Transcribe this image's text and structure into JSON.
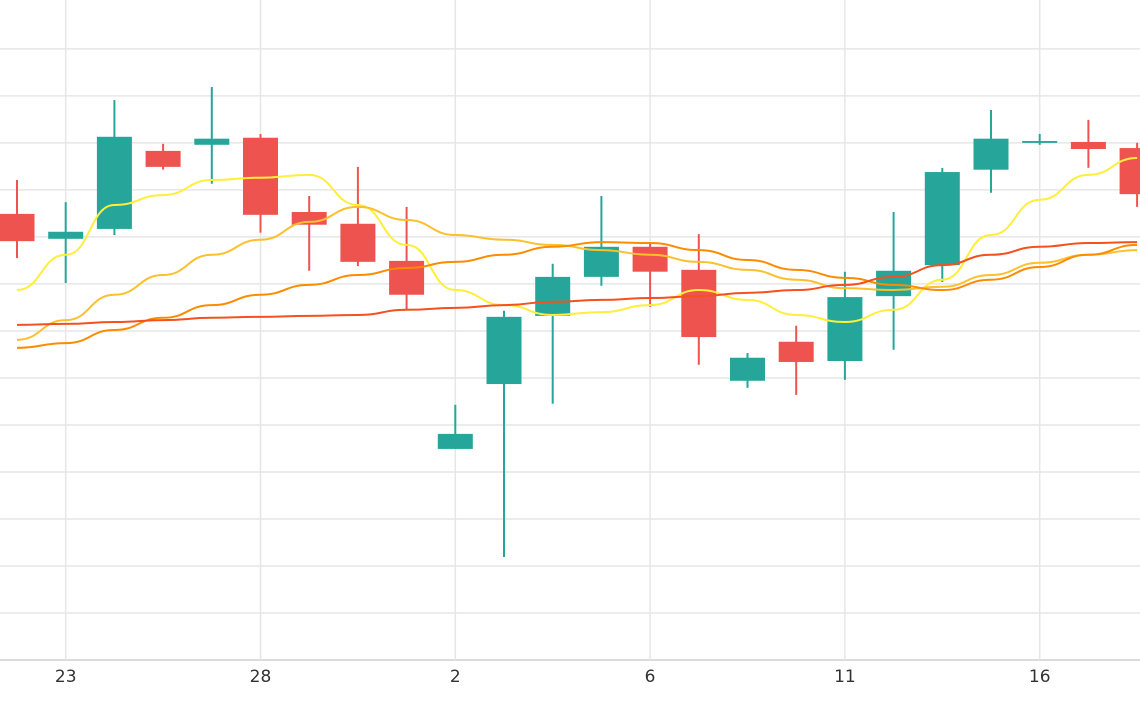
{
  "chart_data": {
    "type": "candlestick",
    "categories": [
      null,
      "23",
      null,
      null,
      null,
      "28",
      null,
      null,
      null,
      "2",
      null,
      null,
      null,
      "6",
      null,
      null,
      null,
      "11",
      null,
      null,
      null,
      "16",
      null,
      null
    ],
    "open": [
      9.49,
      8.96,
      9.17,
      10.83,
      10.96,
      11.11,
      9.53,
      9.28,
      8.49,
      4.49,
      5.87,
      7.32,
      8.15,
      8.79,
      8.3,
      5.94,
      6.77,
      6.36,
      7.74,
      8.4,
      10.43,
      11.0,
      11.02,
      10.89
    ],
    "high": [
      10.21,
      9.74,
      11.91,
      10.98,
      12.19,
      11.19,
      9.87,
      10.49,
      9.64,
      5.43,
      7.43,
      8.43,
      9.87,
      8.89,
      9.06,
      6.53,
      7.11,
      8.26,
      9.53,
      10.47,
      11.7,
      11.19,
      11.49,
      11.0
    ],
    "low": [
      8.55,
      8.02,
      9.04,
      10.43,
      10.13,
      9.09,
      8.28,
      8.38,
      7.45,
      4.49,
      2.19,
      5.45,
      7.96,
      7.51,
      6.28,
      5.79,
      5.64,
      5.96,
      6.6,
      8.04,
      9.94,
      10.96,
      10.47,
      9.64
    ],
    "close": [
      8.91,
      9.11,
      11.13,
      10.49,
      11.09,
      9.47,
      9.26,
      8.47,
      7.77,
      4.81,
      7.3,
      8.15,
      8.79,
      8.26,
      6.87,
      6.43,
      6.34,
      7.72,
      8.28,
      10.38,
      11.09,
      11.04,
      10.87,
      9.91
    ],
    "up_color": "#26a69a",
    "down_color": "#ef5350",
    "lines": [
      {
        "color": "#ffee3a",
        "values": [
          7.87,
          8.62,
          9.68,
          9.89,
          10.21,
          10.26,
          10.32,
          9.68,
          8.83,
          7.87,
          7.55,
          7.34,
          7.4,
          7.55,
          7.87,
          7.66,
          7.34,
          7.19,
          7.45,
          8.09,
          9.04,
          9.79,
          10.32,
          10.68
        ]
      },
      {
        "color": "#fbc02d",
        "values": [
          6.81,
          7.23,
          7.77,
          8.19,
          8.62,
          8.94,
          9.32,
          9.64,
          9.36,
          9.04,
          8.94,
          8.83,
          8.72,
          8.62,
          8.47,
          8.3,
          8.09,
          7.91,
          7.87,
          7.94,
          8.19,
          8.45,
          8.62,
          8.72
        ]
      },
      {
        "color": "#fb8c00",
        "values": [
          6.64,
          6.74,
          7.02,
          7.28,
          7.55,
          7.77,
          7.98,
          8.19,
          8.34,
          8.47,
          8.62,
          8.79,
          8.89,
          8.87,
          8.72,
          8.51,
          8.3,
          8.13,
          7.98,
          7.87,
          8.09,
          8.36,
          8.62,
          8.83
        ]
      },
      {
        "color": "#f4511e",
        "values": [
          7.13,
          7.15,
          7.19,
          7.23,
          7.28,
          7.3,
          7.32,
          7.34,
          7.45,
          7.49,
          7.55,
          7.62,
          7.66,
          7.7,
          7.74,
          7.81,
          7.87,
          7.98,
          8.15,
          8.4,
          8.62,
          8.79,
          8.87,
          8.89
        ]
      }
    ],
    "ylim": [
      0,
      14.04
    ],
    "yticks": [
      0,
      1,
      2,
      3,
      4,
      5,
      6,
      7,
      8,
      9,
      10,
      11,
      12,
      13
    ],
    "grid": true
  }
}
